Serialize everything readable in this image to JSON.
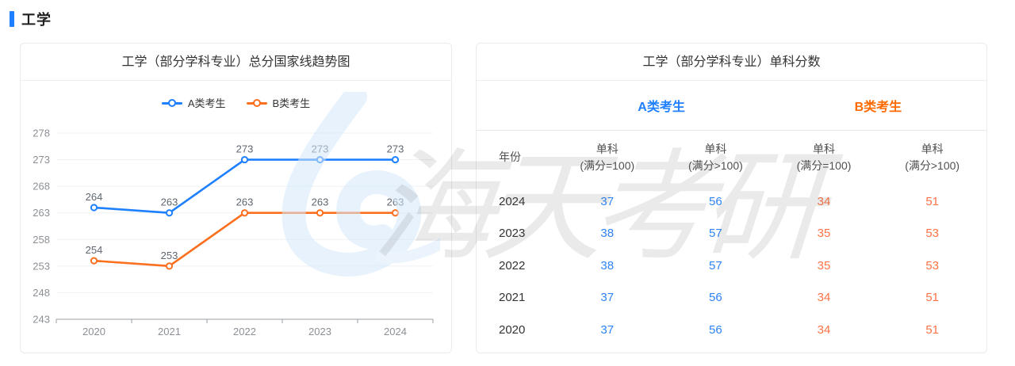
{
  "page": {
    "title": "工学"
  },
  "colors": {
    "blue": "#1e80ff",
    "blue_value": "#2f83f7",
    "orange": "#fb6f1e",
    "orange_strong": "#ff6a00",
    "orange_value": "#ff7245",
    "grid": "#edf1f6",
    "axis": "#9aa0a6",
    "tick_label": "#8c9096",
    "data_label": "#5f6670"
  },
  "chart_card": {
    "title": "工学（部分学科专业）总分国家线趋势图"
  },
  "chart_data": {
    "type": "line",
    "title": "工学（部分学科专业）总分国家线趋势图",
    "categories": [
      "2020",
      "2021",
      "2022",
      "2023",
      "2024"
    ],
    "series": [
      {
        "name": "A类考生",
        "color": "#1e80ff",
        "values": [
          264,
          263,
          273,
          273,
          273
        ]
      },
      {
        "name": "B类考生",
        "color": "#fb6f1e",
        "values": [
          254,
          253,
          263,
          263,
          263
        ]
      }
    ],
    "ylim": [
      243,
      278
    ],
    "yticks": [
      243,
      248,
      253,
      258,
      263,
      268,
      273,
      278
    ],
    "grid": true,
    "legend_position": "top",
    "xlabel": "",
    "ylabel": ""
  },
  "table_card": {
    "title": "工学（部分学科专业）单科分数",
    "group_headers": [
      {
        "label": "A类考生"
      },
      {
        "label": "B类考生"
      }
    ],
    "columns": [
      {
        "top": "年份",
        "bottom": ""
      },
      {
        "top": "单科",
        "bottom": "(满分=100)"
      },
      {
        "top": "单科",
        "bottom": "(满分>100)"
      },
      {
        "top": "单科",
        "bottom": "(满分=100)"
      },
      {
        "top": "单科",
        "bottom": "(满分>100)"
      }
    ],
    "rows": [
      {
        "year": "2024",
        "values": [
          "37",
          "56",
          "34",
          "51"
        ]
      },
      {
        "year": "2023",
        "values": [
          "38",
          "57",
          "35",
          "53"
        ]
      },
      {
        "year": "2022",
        "values": [
          "38",
          "57",
          "35",
          "53"
        ]
      },
      {
        "year": "2021",
        "values": [
          "37",
          "56",
          "34",
          "51"
        ]
      },
      {
        "year": "2020",
        "values": [
          "37",
          "56",
          "34",
          "51"
        ]
      }
    ]
  },
  "watermark": {
    "text": "海天考研"
  }
}
